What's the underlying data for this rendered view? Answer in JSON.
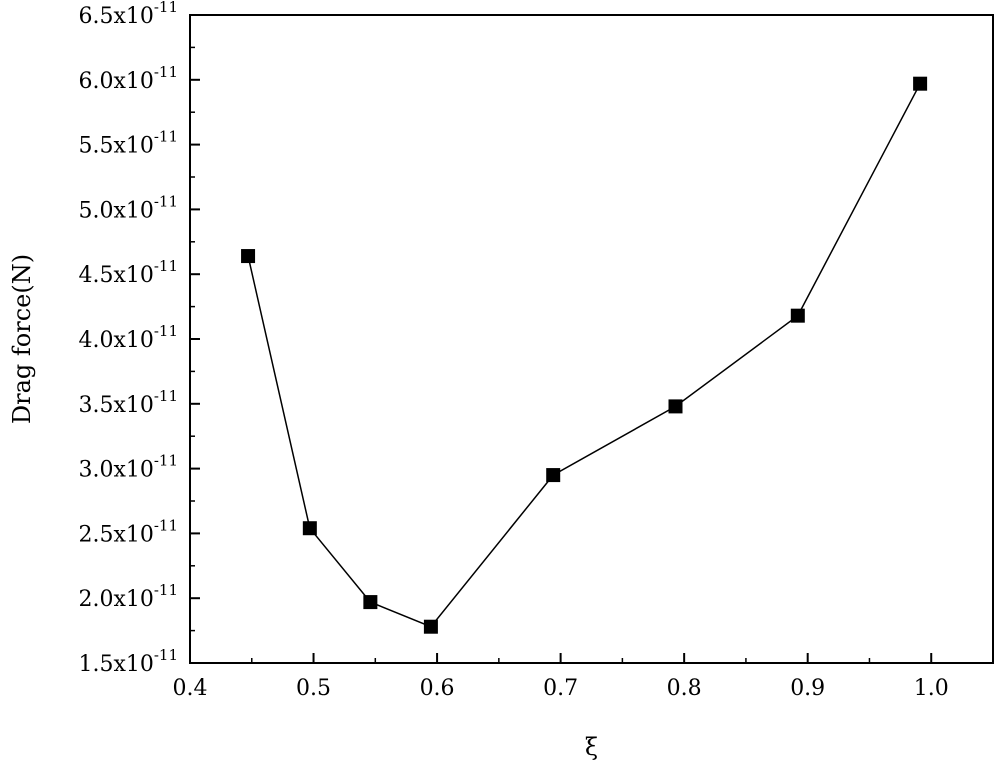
{
  "chart_data": {
    "type": "line",
    "title": "",
    "xlabel": "ξ",
    "ylabel": "Drag force(N)",
    "xlim": [
      0.4,
      1.05
    ],
    "ylim": [
      1.5e-11,
      6.5e-11
    ],
    "x_ticks": [
      0.4,
      0.5,
      0.6,
      0.7,
      0.8,
      0.9,
      1.0
    ],
    "x_tick_labels": [
      "0.4",
      "0.5",
      "0.6",
      "0.7",
      "0.8",
      "0.9",
      "1.0"
    ],
    "y_ticks": [
      1.5e-11,
      2e-11,
      2.5e-11,
      3e-11,
      3.5e-11,
      4e-11,
      4.5e-11,
      5e-11,
      5.5e-11,
      6e-11,
      6.5e-11
    ],
    "y_tick_mantissas": [
      "1.5x10",
      "2.0x10",
      "2.5x10",
      "3.0x10",
      "3.5x10",
      "4.0x10",
      "4.5x10",
      "5.0x10",
      "5.5x10",
      "6.0x10",
      "6.5x10"
    ],
    "y_tick_exponent": "-11",
    "grid": false,
    "legend": "none",
    "marker": "square",
    "line_color": "#000000",
    "marker_color": "#000000",
    "series": [
      {
        "x": [
          0.447,
          0.497,
          0.546,
          0.595,
          0.694,
          0.793,
          0.892,
          0.991
        ],
        "y": [
          4.64e-11,
          2.54e-11,
          1.97e-11,
          1.78e-11,
          2.95e-11,
          3.48e-11,
          4.18e-11,
          5.97e-11
        ]
      }
    ]
  }
}
